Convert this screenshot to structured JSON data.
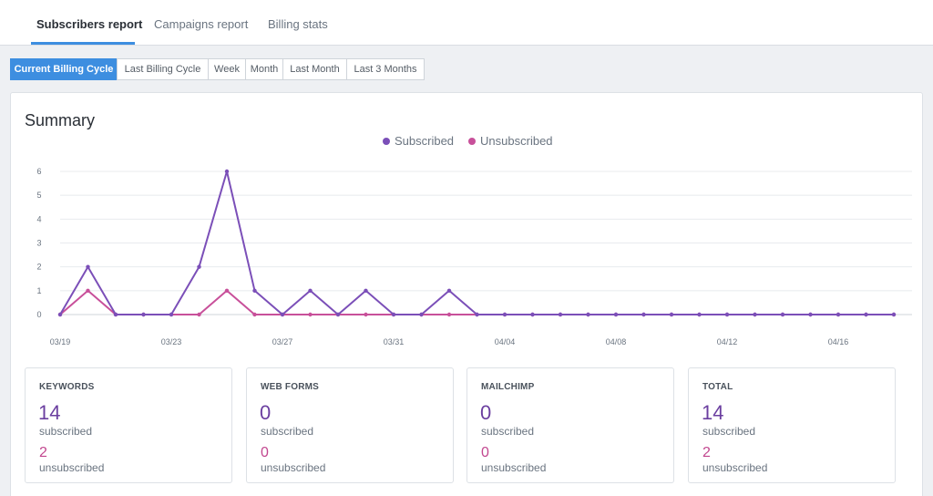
{
  "tabs": [
    {
      "label": "Subscribers report",
      "active": true
    },
    {
      "label": "Campaigns report",
      "active": false
    },
    {
      "label": "Billing stats",
      "active": false
    }
  ],
  "ranges": [
    {
      "label": "Current Billing Cycle",
      "active": true
    },
    {
      "label": "Last Billing Cycle",
      "active": false
    },
    {
      "label": "Week",
      "active": false
    },
    {
      "label": "Month",
      "active": false
    },
    {
      "label": "Last Month",
      "active": false
    },
    {
      "label": "Last 3 Months",
      "active": false
    }
  ],
  "summary": {
    "title": "Summary"
  },
  "colors": {
    "subscribed": "#7b4fb8",
    "unsubscribed": "#c8509a",
    "accent": "#3d8ee0"
  },
  "chart_data": {
    "type": "line",
    "x": [
      "03/19",
      "03/20",
      "03/21",
      "03/22",
      "03/23",
      "03/24",
      "03/25",
      "03/26",
      "03/27",
      "03/28",
      "03/29",
      "03/30",
      "03/31",
      "04/01",
      "04/02",
      "04/03",
      "04/04",
      "04/05",
      "04/06",
      "04/07",
      "04/08",
      "04/09",
      "04/10",
      "04/11",
      "04/12",
      "04/13",
      "04/14",
      "04/15",
      "04/16",
      "04/17",
      "04/18"
    ],
    "x_tick_labels": [
      "03/19",
      "03/23",
      "03/27",
      "03/31",
      "04/04",
      "04/08",
      "04/12",
      "04/16"
    ],
    "series": [
      {
        "name": "Subscribed",
        "values": [
          0,
          2,
          0,
          0,
          0,
          2,
          6,
          1,
          0,
          1,
          0,
          1,
          0,
          0,
          1,
          0,
          0,
          0,
          0,
          0,
          0,
          0,
          0,
          0,
          0,
          0,
          0,
          0,
          0,
          0,
          0
        ]
      },
      {
        "name": "Unsubscribed",
        "values": [
          0,
          1,
          0,
          0,
          0,
          0,
          1,
          0,
          0,
          0,
          0,
          0,
          0,
          0,
          0,
          0,
          0,
          0,
          0,
          0,
          0,
          0,
          0,
          0,
          0,
          0,
          0,
          0,
          0,
          0,
          0
        ]
      }
    ],
    "ylim": [
      0,
      6
    ],
    "y_ticks": [
      0,
      1,
      2,
      3,
      4,
      5,
      6
    ],
    "grid": true,
    "legend": "top-center"
  },
  "stats": [
    {
      "label": "KEYWORDS",
      "subscribed": "14",
      "subscribed_text": "subscribed",
      "unsubscribed": "2",
      "unsubscribed_text": "unsubscribed"
    },
    {
      "label": "WEB FORMS",
      "subscribed": "0",
      "subscribed_text": "subscribed",
      "unsubscribed": "0",
      "unsubscribed_text": "unsubscribed"
    },
    {
      "label": "MAILCHIMP",
      "subscribed": "0",
      "subscribed_text": "subscribed",
      "unsubscribed": "0",
      "unsubscribed_text": "unsubscribed"
    },
    {
      "label": "TOTAL",
      "subscribed": "14",
      "subscribed_text": "subscribed",
      "unsubscribed": "2",
      "unsubscribed_text": "unsubscribed"
    }
  ]
}
